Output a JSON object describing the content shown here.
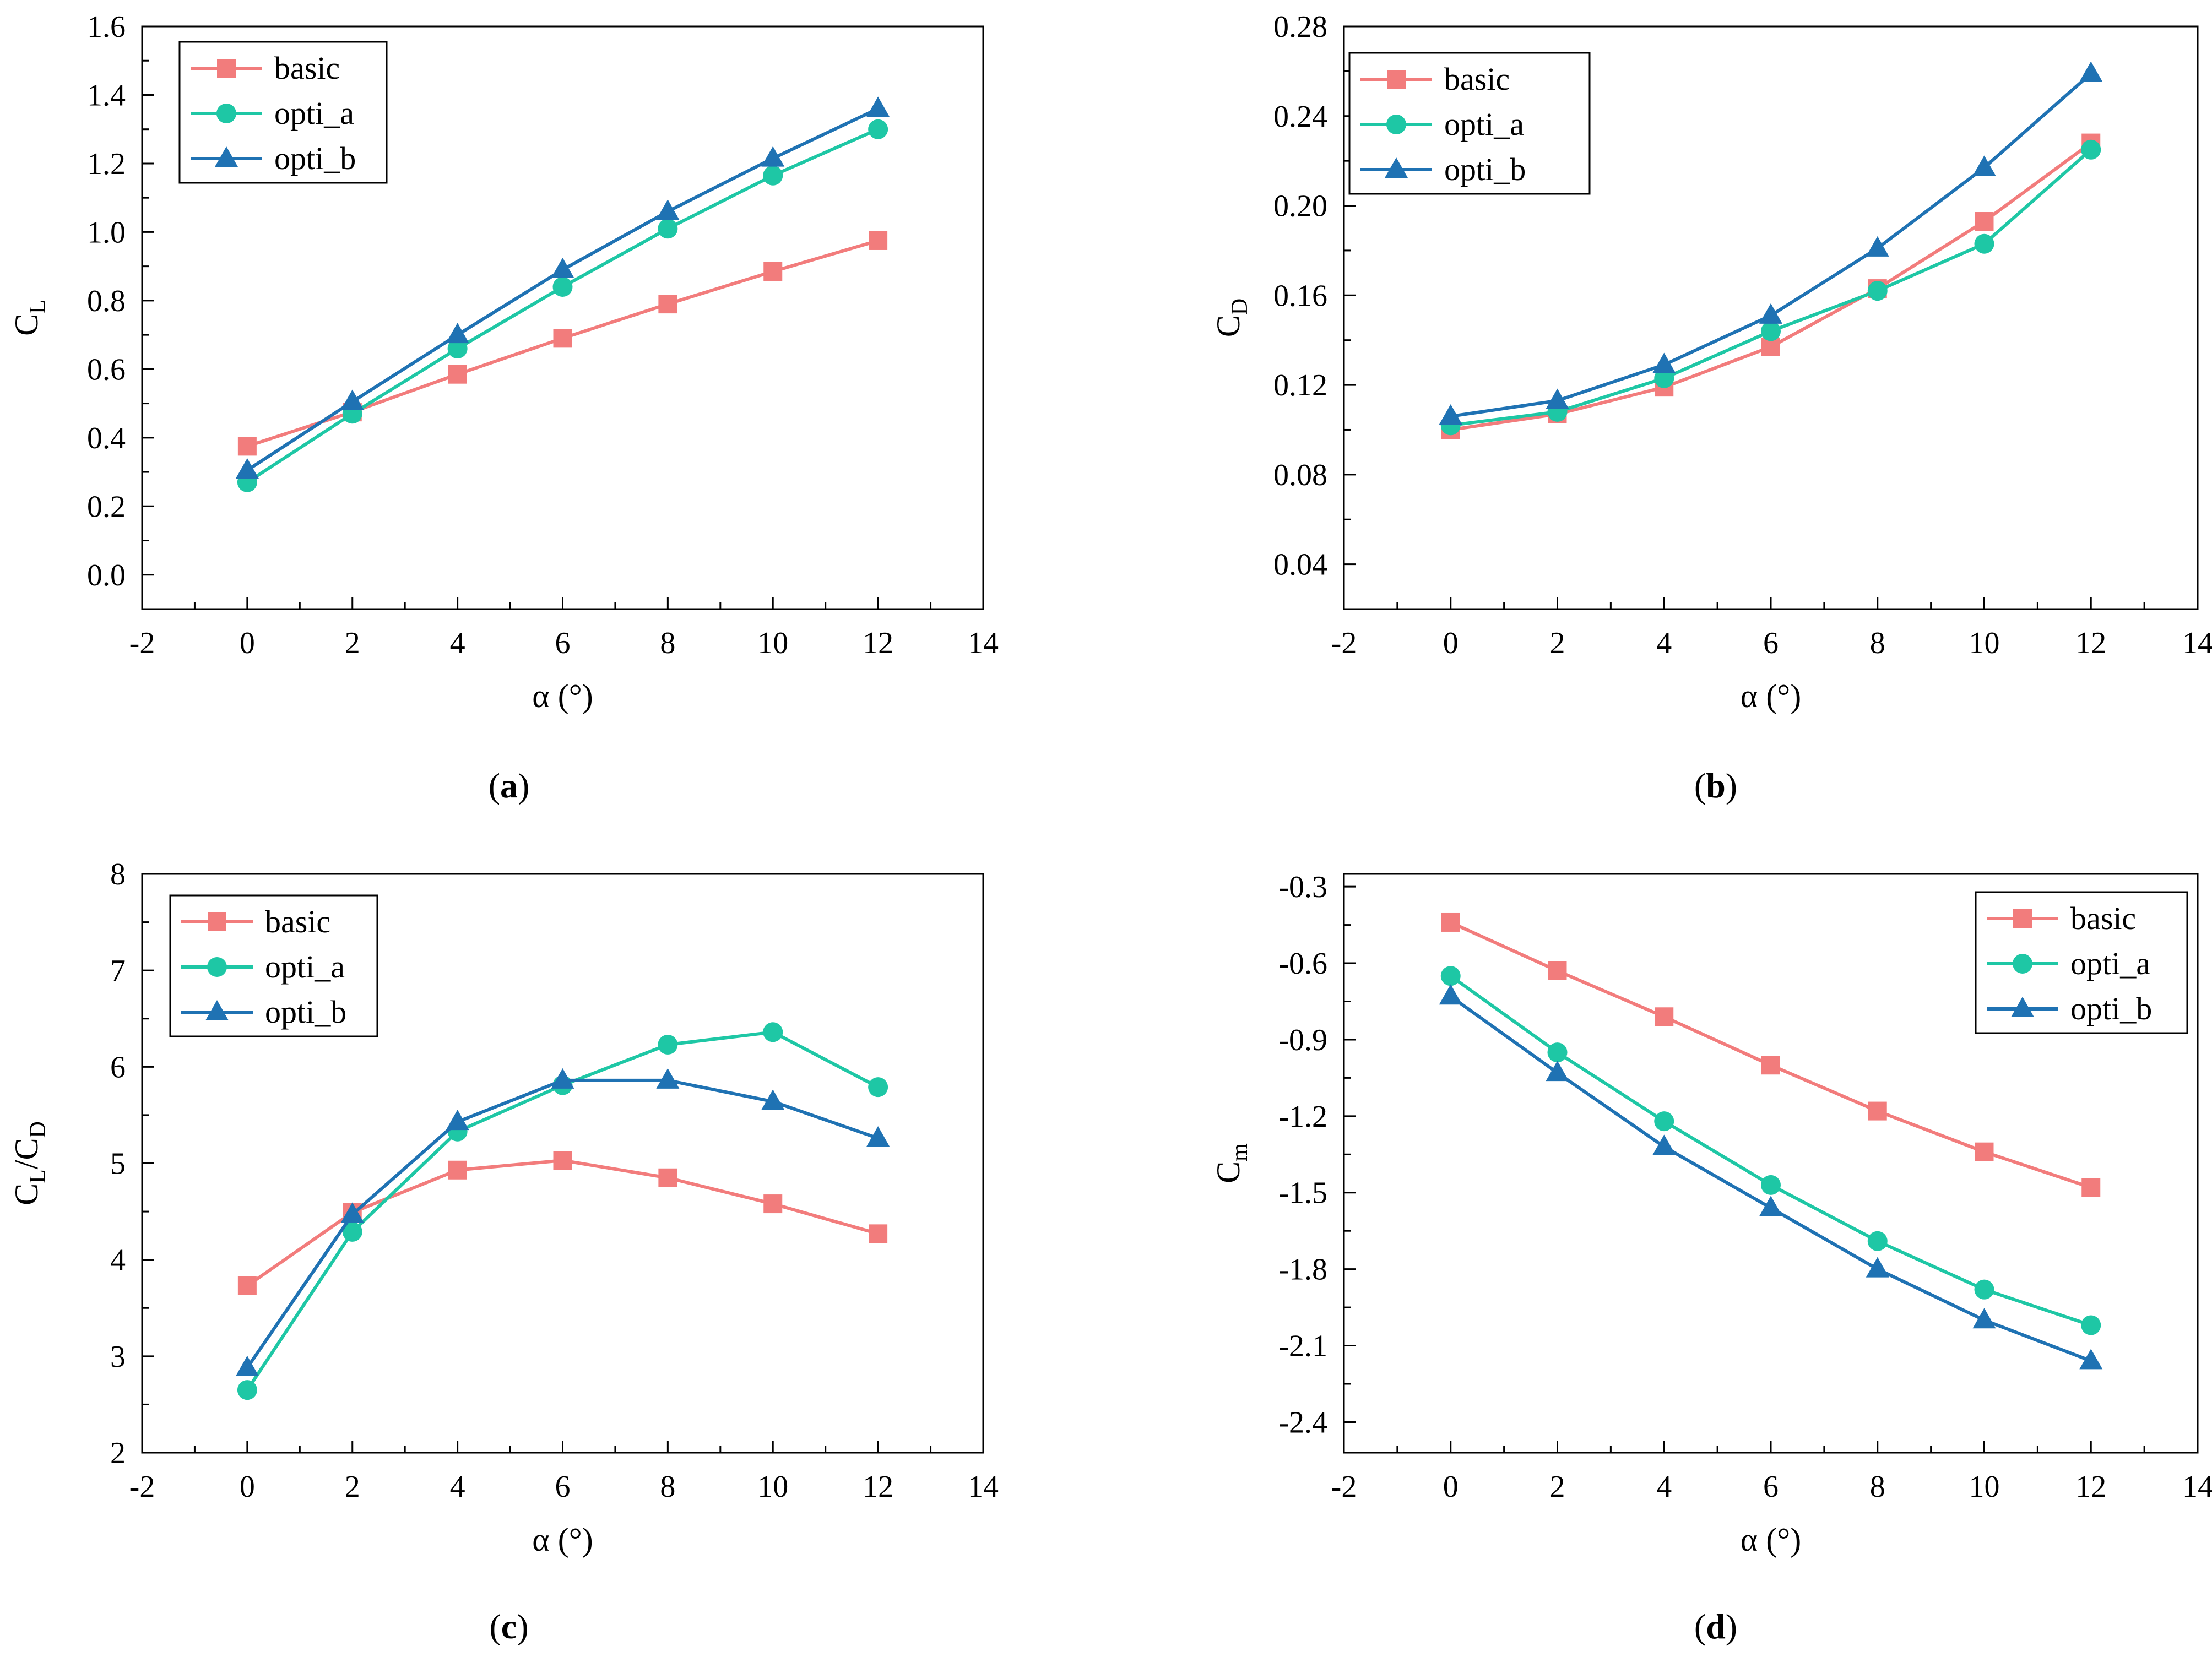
{
  "colors": {
    "basic": "#f27c7c",
    "opti_a": "#1ec7a5",
    "opti_b": "#1f72b3"
  },
  "chart_data": [
    {
      "id": "a",
      "type": "line",
      "panel_label": "a",
      "xlabel": "α (°)",
      "ylabel": "C",
      "ylabel_sub": "L",
      "xlim": [
        -2,
        14
      ],
      "ylim": [
        -0.1,
        1.6
      ],
      "xticks": [
        "-2",
        "0",
        "2",
        "4",
        "6",
        "8",
        "10",
        "12",
        "14"
      ],
      "yticks": [
        "0.0",
        "0.2",
        "0.4",
        "0.6",
        "0.8",
        "1.0",
        "1.2",
        "1.4",
        "1.6"
      ],
      "legend_position": "top-left",
      "x": [
        0,
        2,
        4,
        6,
        8,
        10,
        12
      ],
      "series": [
        {
          "name": "basic",
          "marker": "square",
          "values": [
            0.375,
            0.475,
            0.585,
            0.69,
            0.79,
            0.885,
            0.975
          ]
        },
        {
          "name": "opti_a",
          "marker": "circle",
          "values": [
            0.27,
            0.47,
            0.66,
            0.84,
            1.01,
            1.165,
            1.3
          ]
        },
        {
          "name": "opti_b",
          "marker": "triangle",
          "values": [
            0.305,
            0.505,
            0.7,
            0.89,
            1.06,
            1.215,
            1.36
          ]
        }
      ]
    },
    {
      "id": "b",
      "type": "line",
      "panel_label": "b",
      "xlabel": "α (°)",
      "ylabel": "C",
      "ylabel_sub": "D",
      "xlim": [
        -2,
        14
      ],
      "ylim": [
        0.02,
        0.28
      ],
      "xticks": [
        "-2",
        "0",
        "2",
        "4",
        "6",
        "8",
        "10",
        "12",
        "14"
      ],
      "yticks": [
        "0.04",
        "0.08",
        "0.12",
        "0.16",
        "0.20",
        "0.24",
        "0.28"
      ],
      "legend_position": "top-left",
      "x": [
        0,
        2,
        4,
        6,
        8,
        10,
        12
      ],
      "series": [
        {
          "name": "basic",
          "marker": "square",
          "values": [
            0.1,
            0.107,
            0.119,
            0.137,
            0.163,
            0.193,
            0.228
          ]
        },
        {
          "name": "opti_a",
          "marker": "circle",
          "values": [
            0.102,
            0.108,
            0.123,
            0.144,
            0.162,
            0.183,
            0.225
          ]
        },
        {
          "name": "opti_b",
          "marker": "triangle",
          "values": [
            0.106,
            0.113,
            0.129,
            0.151,
            0.181,
            0.217,
            0.259
          ]
        }
      ]
    },
    {
      "id": "c",
      "type": "line",
      "panel_label": "c",
      "xlabel": "α (°)",
      "ylabel": "C",
      "ylabel_sub": "L",
      "ylabel_mid": "/C",
      "ylabel_sub2": "D",
      "xlim": [
        -2,
        14
      ],
      "ylim": [
        2,
        8
      ],
      "xticks": [
        "-2",
        "0",
        "2",
        "4",
        "6",
        "8",
        "10",
        "12",
        "14"
      ],
      "yticks": [
        "2",
        "3",
        "4",
        "5",
        "6",
        "7",
        "8"
      ],
      "legend_position": "top-left",
      "x": [
        0,
        2,
        4,
        6,
        8,
        10,
        12
      ],
      "series": [
        {
          "name": "basic",
          "marker": "square",
          "values": [
            3.73,
            4.49,
            4.93,
            5.03,
            4.85,
            4.58,
            4.27
          ]
        },
        {
          "name": "opti_a",
          "marker": "circle",
          "values": [
            2.65,
            4.29,
            5.33,
            5.81,
            6.23,
            6.36,
            5.79
          ]
        },
        {
          "name": "opti_b",
          "marker": "triangle",
          "values": [
            2.88,
            4.47,
            5.43,
            5.86,
            5.86,
            5.64,
            5.26
          ]
        }
      ]
    },
    {
      "id": "d",
      "type": "line",
      "panel_label": "d",
      "xlabel": "α (°)",
      "ylabel": "C",
      "ylabel_sub": "m",
      "xlim": [
        -2,
        14
      ],
      "ylim": [
        -2.52,
        -0.25
      ],
      "xticks": [
        "-2",
        "0",
        "2",
        "4",
        "6",
        "8",
        "10",
        "12",
        "14"
      ],
      "yticks": [
        "-2.4",
        "-2.1",
        "-1.8",
        "-1.5",
        "-1.2",
        "-0.9",
        "-0.6",
        "-0.3"
      ],
      "legend_position": "top-right",
      "x": [
        0,
        2,
        4,
        6,
        8,
        10,
        12
      ],
      "series": [
        {
          "name": "basic",
          "marker": "square",
          "values": [
            -0.44,
            -0.63,
            -0.81,
            -1.0,
            -1.18,
            -1.34,
            -1.48
          ]
        },
        {
          "name": "opti_a",
          "marker": "circle",
          "values": [
            -0.65,
            -0.95,
            -1.22,
            -1.47,
            -1.69,
            -1.88,
            -2.02
          ]
        },
        {
          "name": "opti_b",
          "marker": "triangle",
          "values": [
            -0.73,
            -1.03,
            -1.32,
            -1.56,
            -1.8,
            -2.0,
            -2.16
          ]
        }
      ]
    }
  ]
}
